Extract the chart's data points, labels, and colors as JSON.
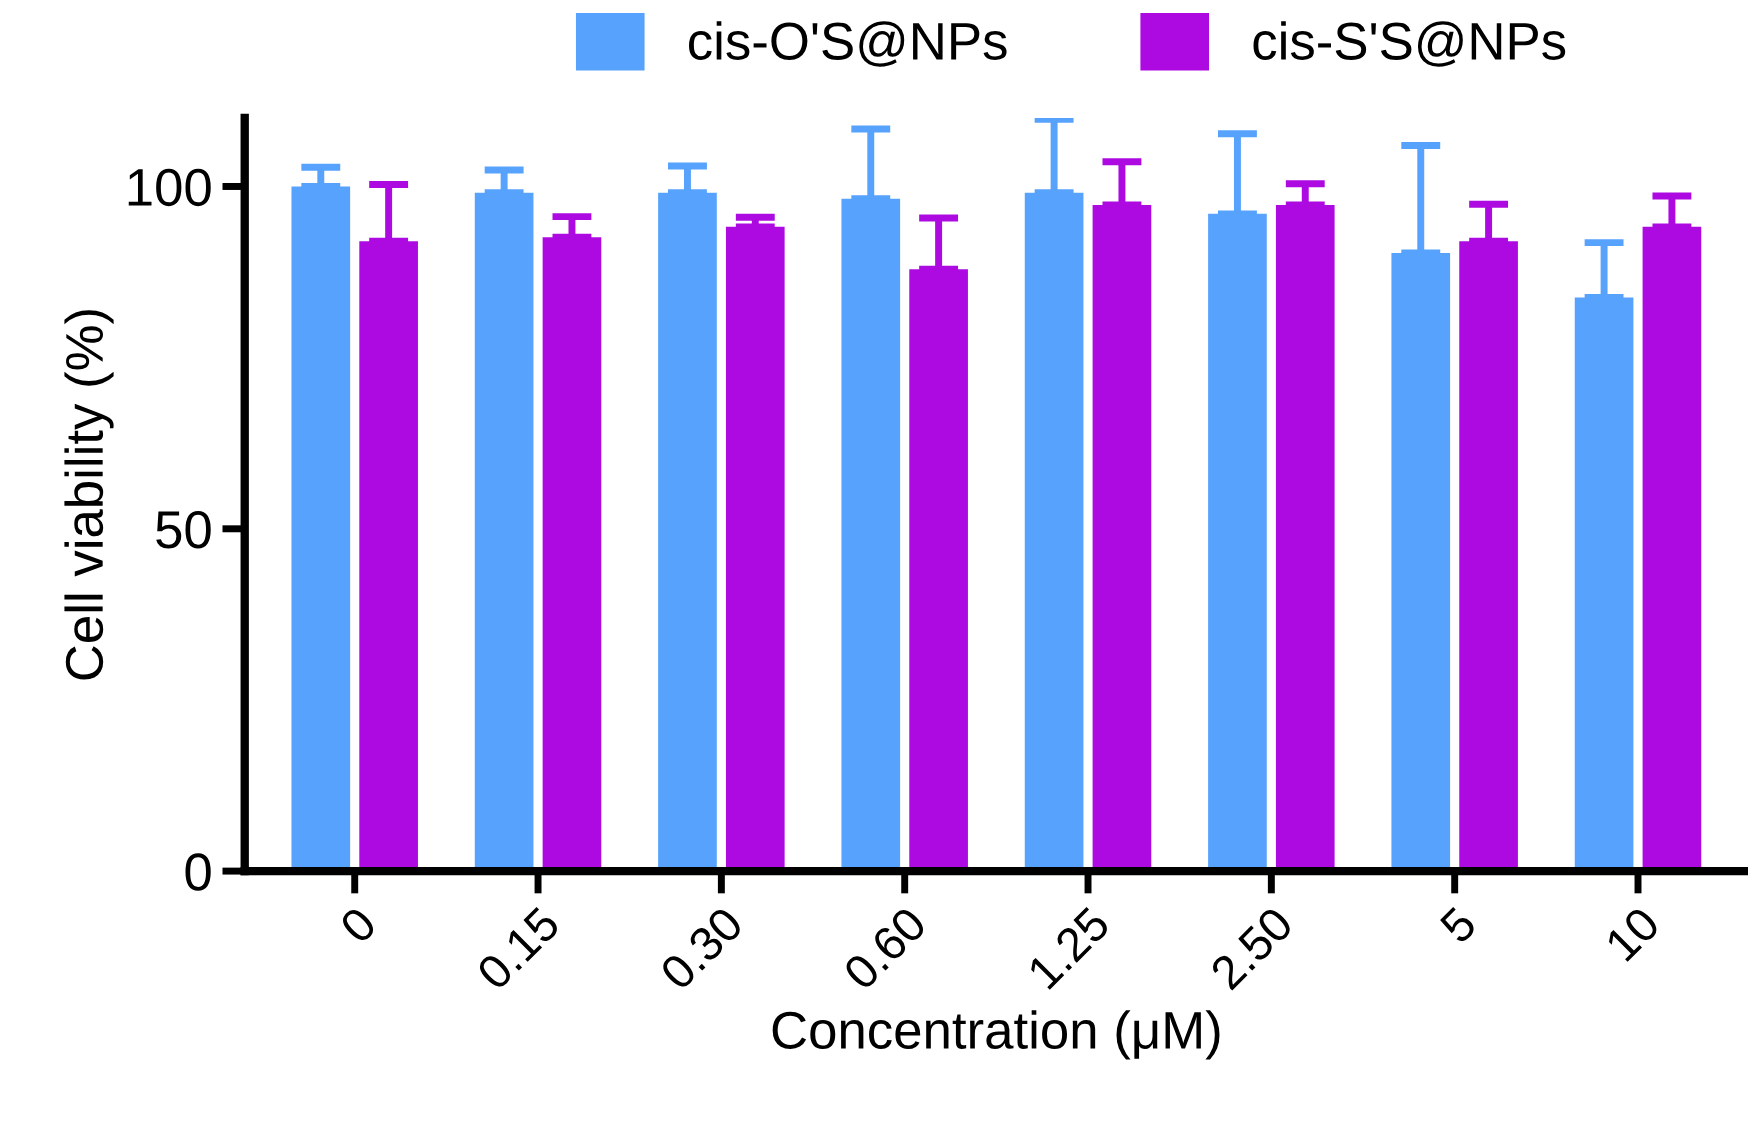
{
  "chart_data": {
    "type": "bar",
    "xlabel": "Concentration (μM)",
    "ylabel": "Cell viability (%)",
    "categories": [
      "0",
      "0.15",
      "0.30",
      "0.60",
      "1.25",
      "2.50",
      "5",
      "10"
    ],
    "series": [
      {
        "name": "cis-O'S@NPs",
        "color": "#56a2fc",
        "values": [
          100,
          99.1,
          99.1,
          98.2,
          99.1,
          96.0,
          90.3,
          83.8
        ],
        "errors": [
          [
            100,
            102.8
          ],
          [
            99.1,
            102.4
          ],
          [
            99.1,
            103.0
          ],
          [
            98.2,
            108.4
          ],
          [
            99.1,
            109.8
          ],
          [
            96.0,
            107.7
          ],
          [
            90.3,
            106.0
          ],
          [
            83.8,
            91.8
          ]
        ]
      },
      {
        "name": "cis-S'S@NPs",
        "color": "#ad0ae2",
        "values": [
          92.0,
          92.6,
          94.1,
          87.9,
          97.3,
          97.3,
          92.0,
          94.1
        ],
        "errors": [
          [
            92.0,
            100.3
          ],
          [
            92.6,
            95.6
          ],
          [
            94.1,
            95.5
          ],
          [
            87.9,
            95.4
          ],
          [
            97.3,
            103.6
          ],
          [
            97.3,
            100.4
          ],
          [
            92.0,
            97.4
          ],
          [
            94.1,
            98.6
          ]
        ]
      }
    ],
    "ylim": [
      0,
      110
    ],
    "yticks": [
      0,
      50,
      100
    ],
    "grid": false,
    "legend": "top"
  }
}
